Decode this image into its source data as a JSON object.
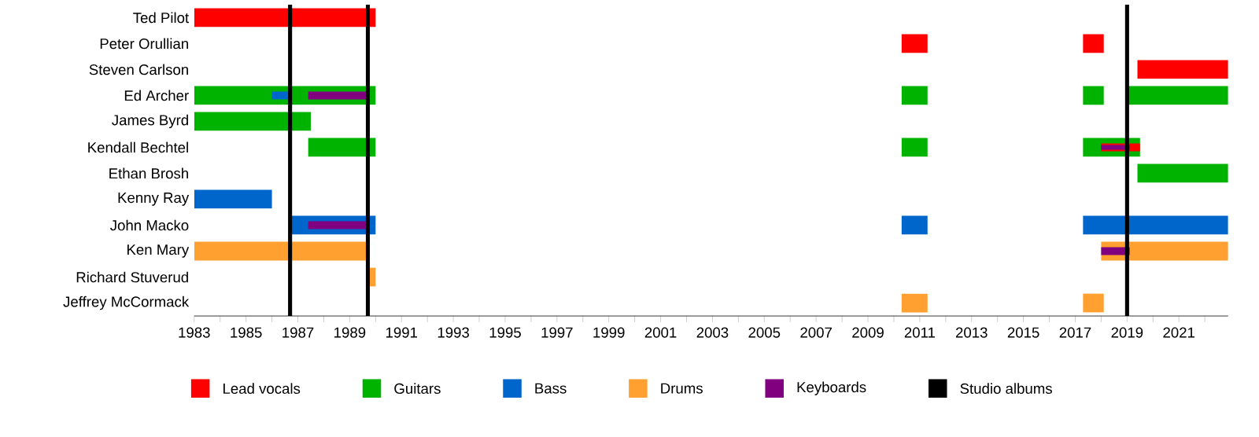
{
  "chart_data": {
    "type": "bar",
    "orientation": "horizontal",
    "legend": "bottom",
    "categories": [
      "Ted Pilot",
      "Peter Orullian",
      "Steven Carlson",
      "Ed Archer",
      "James Byrd",
      "Kendall Bechtel",
      "Ethan Brosh",
      "Kenny Ray",
      "John Macko",
      "Ken Mary",
      "Richard Stuverud",
      "Jeffrey McCormack"
    ],
    "xlim": [
      1983,
      2022.9
    ],
    "xticks": [
      1983,
      {
        "value": 1984,
        "label": null
      },
      1985,
      {
        "value": 1986,
        "label": null
      },
      1987,
      {
        "value": 1988,
        "label": null
      },
      1989,
      {
        "value": 1990,
        "label": null
      },
      1991,
      {
        "value": 1992,
        "label": null
      },
      1993,
      {
        "value": 1994,
        "label": null
      },
      1995,
      {
        "value": 1996,
        "label": null
      },
      1997,
      {
        "value": 1998,
        "label": null
      },
      1999,
      {
        "value": 2000,
        "label": null
      },
      2001,
      {
        "value": 2002,
        "label": null
      },
      2003,
      {
        "value": 2004,
        "label": null
      },
      2005,
      {
        "value": 2006,
        "label": null
      },
      2007,
      {
        "value": 2008,
        "label": null
      },
      2009,
      {
        "value": 2010,
        "label": null
      },
      2011,
      {
        "value": 2012,
        "label": null
      },
      2013,
      {
        "value": 2014,
        "label": null
      },
      2015,
      {
        "value": 2016,
        "label": null
      },
      2017,
      {
        "value": 2018,
        "label": null
      },
      2019,
      {
        "value": 2020,
        "label": null
      },
      2021,
      {
        "value": 2022,
        "label": null
      }
    ],
    "series": [
      {
        "name": "Lead vocals",
        "color": "#ff0000",
        "base": [
          1983,
          2010.3,
          2019.4,
          null,
          null,
          null,
          null,
          null,
          null,
          null,
          null,
          null
        ],
        "values": [
          7.0,
          1.0,
          3.5,
          null,
          null,
          null,
          null,
          null,
          null,
          null,
          null,
          null
        ]
      },
      {
        "color": "#ff0000",
        "base": [
          null,
          2017.3,
          null,
          null,
          null,
          2018.0,
          null,
          null,
          null,
          null,
          null,
          null
        ],
        "values": [
          null,
          0.8,
          null,
          null,
          null,
          1.5,
          null,
          null,
          null,
          null,
          null,
          null
        ]
      },
      {
        "name": "Guitars",
        "color": "#00b300",
        "base": [
          null,
          null,
          null,
          1983,
          1983,
          1987.4,
          2019.4,
          null,
          null,
          null,
          null,
          null
        ],
        "values": [
          null,
          null,
          null,
          7.0,
          4.5,
          2.6,
          3.5,
          null,
          null,
          null,
          null,
          null
        ]
      },
      {
        "color": "#00b300",
        "base": [
          null,
          null,
          null,
          2010.3,
          null,
          2010.3,
          null,
          null,
          null,
          null,
          null,
          null
        ],
        "values": [
          null,
          null,
          null,
          1.0,
          null,
          1.0,
          null,
          null,
          null,
          null,
          null,
          null
        ]
      },
      {
        "color": "#00b300",
        "base": [
          null,
          null,
          null,
          2017.3,
          null,
          2017.3,
          null,
          null,
          null,
          null,
          null,
          null
        ],
        "values": [
          null,
          null,
          null,
          0.8,
          null,
          2.2,
          null,
          null,
          null,
          null,
          null,
          null
        ]
      },
      {
        "color": "#00b300",
        "base": [
          null,
          null,
          null,
          2019.0,
          null,
          null,
          null,
          null,
          null,
          null,
          null,
          null
        ],
        "values": [
          null,
          null,
          null,
          3.9,
          null,
          null,
          null,
          null,
          null,
          null,
          null,
          null
        ]
      },
      {
        "name": "Bass",
        "color": "#0066cc",
        "base": [
          null,
          null,
          null,
          1986.0,
          null,
          null,
          null,
          1983,
          1986.7,
          null,
          null,
          null
        ],
        "values": [
          null,
          null,
          null,
          0.7,
          null,
          null,
          null,
          3.0,
          3.3,
          null,
          null,
          null
        ]
      },
      {
        "color": "#0066cc",
        "base": [
          null,
          null,
          null,
          null,
          null,
          null,
          null,
          null,
          2010.3,
          null,
          null,
          null
        ],
        "values": [
          null,
          null,
          null,
          null,
          null,
          null,
          null,
          null,
          1.0,
          null,
          null,
          null
        ]
      },
      {
        "color": "#0066cc",
        "base": [
          null,
          null,
          null,
          null,
          null,
          null,
          null,
          null,
          2017.3,
          null,
          null,
          null
        ],
        "values": [
          null,
          null,
          null,
          null,
          null,
          null,
          null,
          null,
          5.6,
          null,
          null,
          null
        ]
      },
      {
        "name": "Drums",
        "color": "#ffa031",
        "base": [
          null,
          null,
          null,
          null,
          null,
          null,
          null,
          null,
          null,
          1983,
          1989.7,
          2010.3
        ],
        "values": [
          null,
          null,
          null,
          null,
          null,
          null,
          null,
          null,
          null,
          6.7,
          0.3,
          1.0
        ]
      },
      {
        "color": "#ffa031",
        "base": [
          null,
          null,
          null,
          null,
          null,
          null,
          null,
          null,
          null,
          2018.0,
          null,
          2017.3
        ],
        "values": [
          null,
          null,
          null,
          null,
          null,
          null,
          null,
          null,
          null,
          4.9,
          null,
          0.8
        ]
      },
      {
        "name": "Keyboards",
        "color": "#800080",
        "base": [
          null,
          null,
          null,
          1987.4,
          null,
          null,
          null,
          null,
          1987.4,
          2018.0,
          null,
          null
        ],
        "values": [
          null,
          null,
          null,
          2.3,
          null,
          null,
          null,
          null,
          2.3,
          1.1,
          null,
          null
        ]
      },
      {
        "color": "#800080",
        "base": [
          null,
          null,
          null,
          null,
          null,
          2018.0,
          null,
          null,
          null,
          null,
          null,
          null
        ],
        "values": [
          null,
          null,
          null,
          null,
          null,
          1.1,
          null,
          null,
          null,
          null,
          null,
          null
        ]
      }
    ],
    "ref_lines": [
      {
        "axis": "x",
        "value": 1986.7,
        "label": "Studio albums",
        "color": "#000000"
      },
      {
        "axis": "x",
        "value": 1989.7,
        "color": "#000000"
      },
      {
        "axis": "x",
        "value": 2019.0,
        "color": "#000000"
      }
    ]
  }
}
